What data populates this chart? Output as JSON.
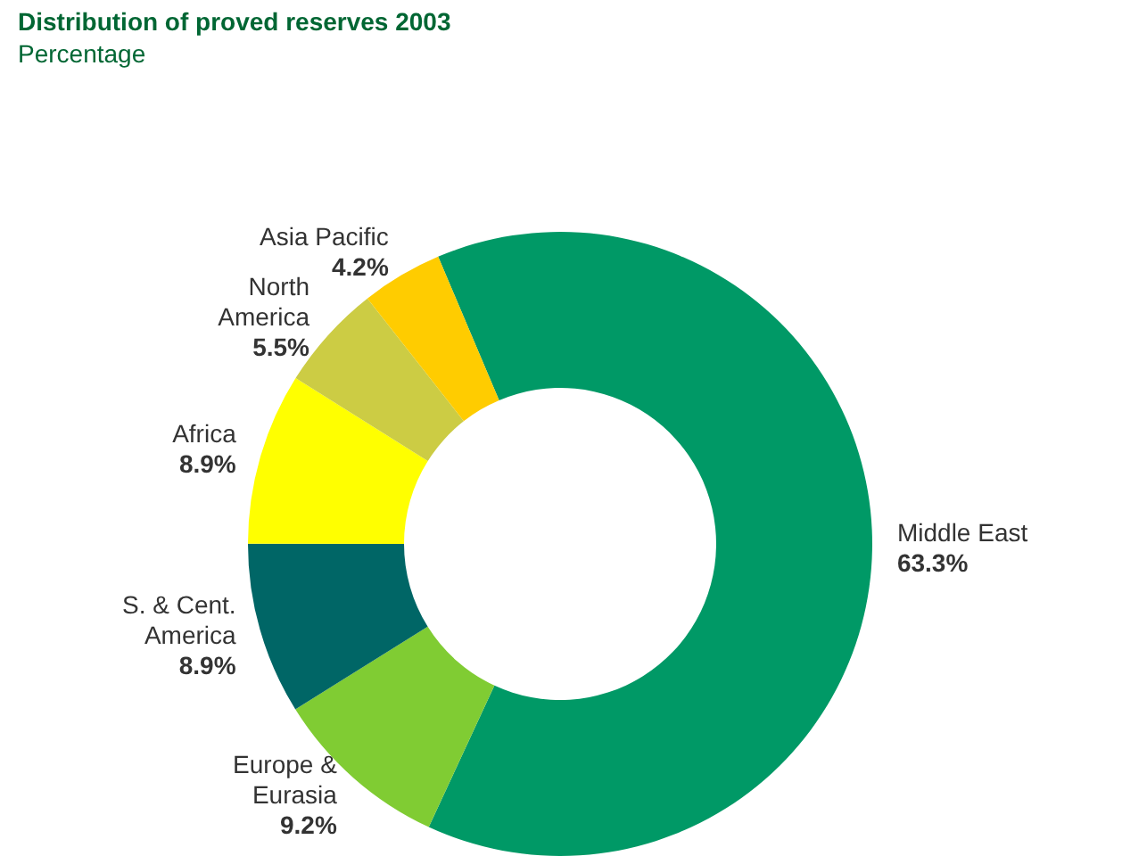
{
  "chart_data": {
    "type": "donut",
    "title": "Distribution of proved reserves 2003",
    "subtitle": "Percentage",
    "categories": [
      "Middle East",
      "Europe & Eurasia",
      "S. & Cent. America",
      "Africa",
      "North America",
      "Asia Pacific"
    ],
    "values": [
      63.3,
      9.2,
      8.9,
      8.9,
      5.5,
      4.2
    ],
    "colors": [
      "#009966",
      "#80cc33",
      "#006666",
      "#ffff00",
      "#cccc44",
      "#ffcc00"
    ],
    "value_labels": [
      "63.3%",
      "9.2%",
      "8.9%",
      "8.9%",
      "5.5%",
      "4.2%"
    ],
    "legend": false
  }
}
